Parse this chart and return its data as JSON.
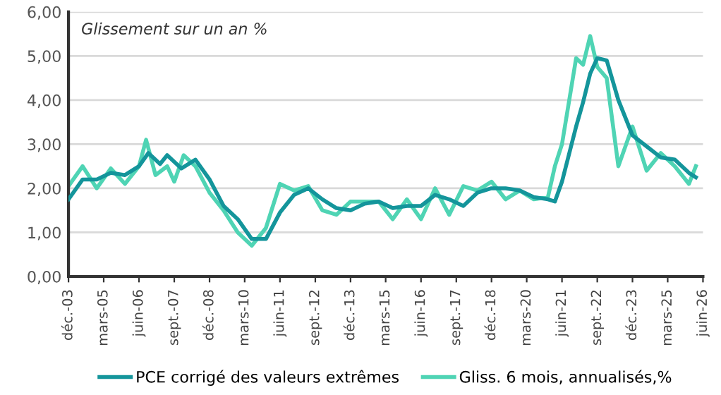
{
  "chart_data": {
    "type": "line",
    "title": "Glissement sur un an %",
    "series": [
      {
        "name": "PCE corrigé des valeurs extrêmes",
        "color": "#14959b",
        "x": [
          "2003-12",
          "2004-06",
          "2004-12",
          "2005-06",
          "2005-12",
          "2006-06",
          "2006-10",
          "2007-03",
          "2007-06",
          "2007-12",
          "2008-06",
          "2008-12",
          "2009-06",
          "2009-12",
          "2010-06",
          "2010-12",
          "2011-06",
          "2011-12",
          "2012-06",
          "2012-12",
          "2013-06",
          "2013-12",
          "2014-06",
          "2014-12",
          "2015-06",
          "2015-12",
          "2016-06",
          "2016-12",
          "2017-06",
          "2017-12",
          "2018-06",
          "2018-12",
          "2019-06",
          "2019-12",
          "2020-06",
          "2020-12",
          "2021-03",
          "2021-06",
          "2021-12",
          "2022-03",
          "2022-06",
          "2022-09",
          "2023-01",
          "2023-06",
          "2023-12",
          "2024-06",
          "2024-12",
          "2025-06",
          "2025-12",
          "2026-03"
        ],
        "values": [
          1.75,
          2.2,
          2.2,
          2.35,
          2.3,
          2.5,
          2.8,
          2.55,
          2.75,
          2.45,
          2.65,
          2.2,
          1.6,
          1.3,
          0.85,
          0.85,
          1.45,
          1.85,
          2.0,
          1.75,
          1.55,
          1.5,
          1.65,
          1.7,
          1.55,
          1.6,
          1.6,
          1.85,
          1.75,
          1.6,
          1.9,
          2.0,
          2.0,
          1.95,
          1.8,
          1.75,
          1.7,
          2.15,
          3.4,
          3.95,
          4.6,
          4.95,
          4.9,
          4.0,
          3.2,
          2.95,
          2.7,
          2.65,
          2.35,
          2.25
        ]
      },
      {
        "name": "Gliss. 6 mois, annualisés,%",
        "color": "#4fd4b4",
        "x": [
          "2003-12",
          "2004-06",
          "2004-12",
          "2005-06",
          "2005-12",
          "2006-06",
          "2006-09",
          "2007-01",
          "2007-06",
          "2007-09",
          "2008-01",
          "2008-06",
          "2008-12",
          "2009-06",
          "2009-12",
          "2010-06",
          "2010-12",
          "2011-06",
          "2011-12",
          "2012-06",
          "2012-12",
          "2013-06",
          "2013-12",
          "2014-06",
          "2014-12",
          "2015-06",
          "2015-12",
          "2016-06",
          "2016-12",
          "2017-06",
          "2017-12",
          "2018-06",
          "2018-12",
          "2019-06",
          "2019-12",
          "2020-06",
          "2020-12",
          "2021-03",
          "2021-06",
          "2021-12",
          "2022-03",
          "2022-06",
          "2022-09",
          "2023-01",
          "2023-06",
          "2023-12",
          "2024-06",
          "2024-12",
          "2025-06",
          "2025-12",
          "2026-03"
        ],
        "values": [
          2.05,
          2.5,
          2.0,
          2.45,
          2.1,
          2.5,
          3.1,
          2.3,
          2.5,
          2.15,
          2.75,
          2.5,
          1.9,
          1.5,
          1.0,
          0.7,
          1.1,
          2.1,
          1.95,
          2.05,
          1.5,
          1.4,
          1.7,
          1.7,
          1.7,
          1.3,
          1.75,
          1.3,
          2.0,
          1.4,
          2.05,
          1.95,
          2.15,
          1.75,
          1.95,
          1.75,
          1.8,
          2.5,
          3.0,
          4.95,
          4.8,
          5.45,
          4.75,
          4.5,
          2.5,
          3.4,
          2.4,
          2.8,
          2.5,
          2.1,
          2.5
        ]
      }
    ],
    "xlim": [
      "2003-12",
      "2026-06"
    ],
    "xticks": [
      {
        "value": "2003-12",
        "label": "déc.-03"
      },
      {
        "value": "2005-03",
        "label": "mars-05"
      },
      {
        "value": "2006-06",
        "label": "juin-06"
      },
      {
        "value": "2007-09",
        "label": "sept.-07"
      },
      {
        "value": "2008-12",
        "label": "déc.-08"
      },
      {
        "value": "2010-03",
        "label": "mars-10"
      },
      {
        "value": "2011-06",
        "label": "juin-11"
      },
      {
        "value": "2012-09",
        "label": "sept.-12"
      },
      {
        "value": "2013-12",
        "label": "déc.-13"
      },
      {
        "value": "2015-03",
        "label": "mars-15"
      },
      {
        "value": "2016-06",
        "label": "juin-16"
      },
      {
        "value": "2017-09",
        "label": "sept.-17"
      },
      {
        "value": "2018-12",
        "label": "déc.-18"
      },
      {
        "value": "2020-03",
        "label": "mars-20"
      },
      {
        "value": "2021-06",
        "label": "juin-21"
      },
      {
        "value": "2022-09",
        "label": "sept.-22"
      },
      {
        "value": "2023-12",
        "label": "déc.-23"
      },
      {
        "value": "2025-03",
        "label": "mars-25"
      },
      {
        "value": "2026-06",
        "label": "juin-26"
      }
    ],
    "ylim": [
      0,
      6
    ],
    "yticks": [
      {
        "value": 0,
        "label": "0,00"
      },
      {
        "value": 1,
        "label": "1,00"
      },
      {
        "value": 2,
        "label": "2,00"
      },
      {
        "value": 3,
        "label": "3,00"
      },
      {
        "value": 4,
        "label": "4,00"
      },
      {
        "value": 5,
        "label": "5,00"
      },
      {
        "value": 6,
        "label": "6,00"
      }
    ],
    "grid": "y",
    "legend": "bottom",
    "line_style": "solid",
    "marker": "none"
  }
}
